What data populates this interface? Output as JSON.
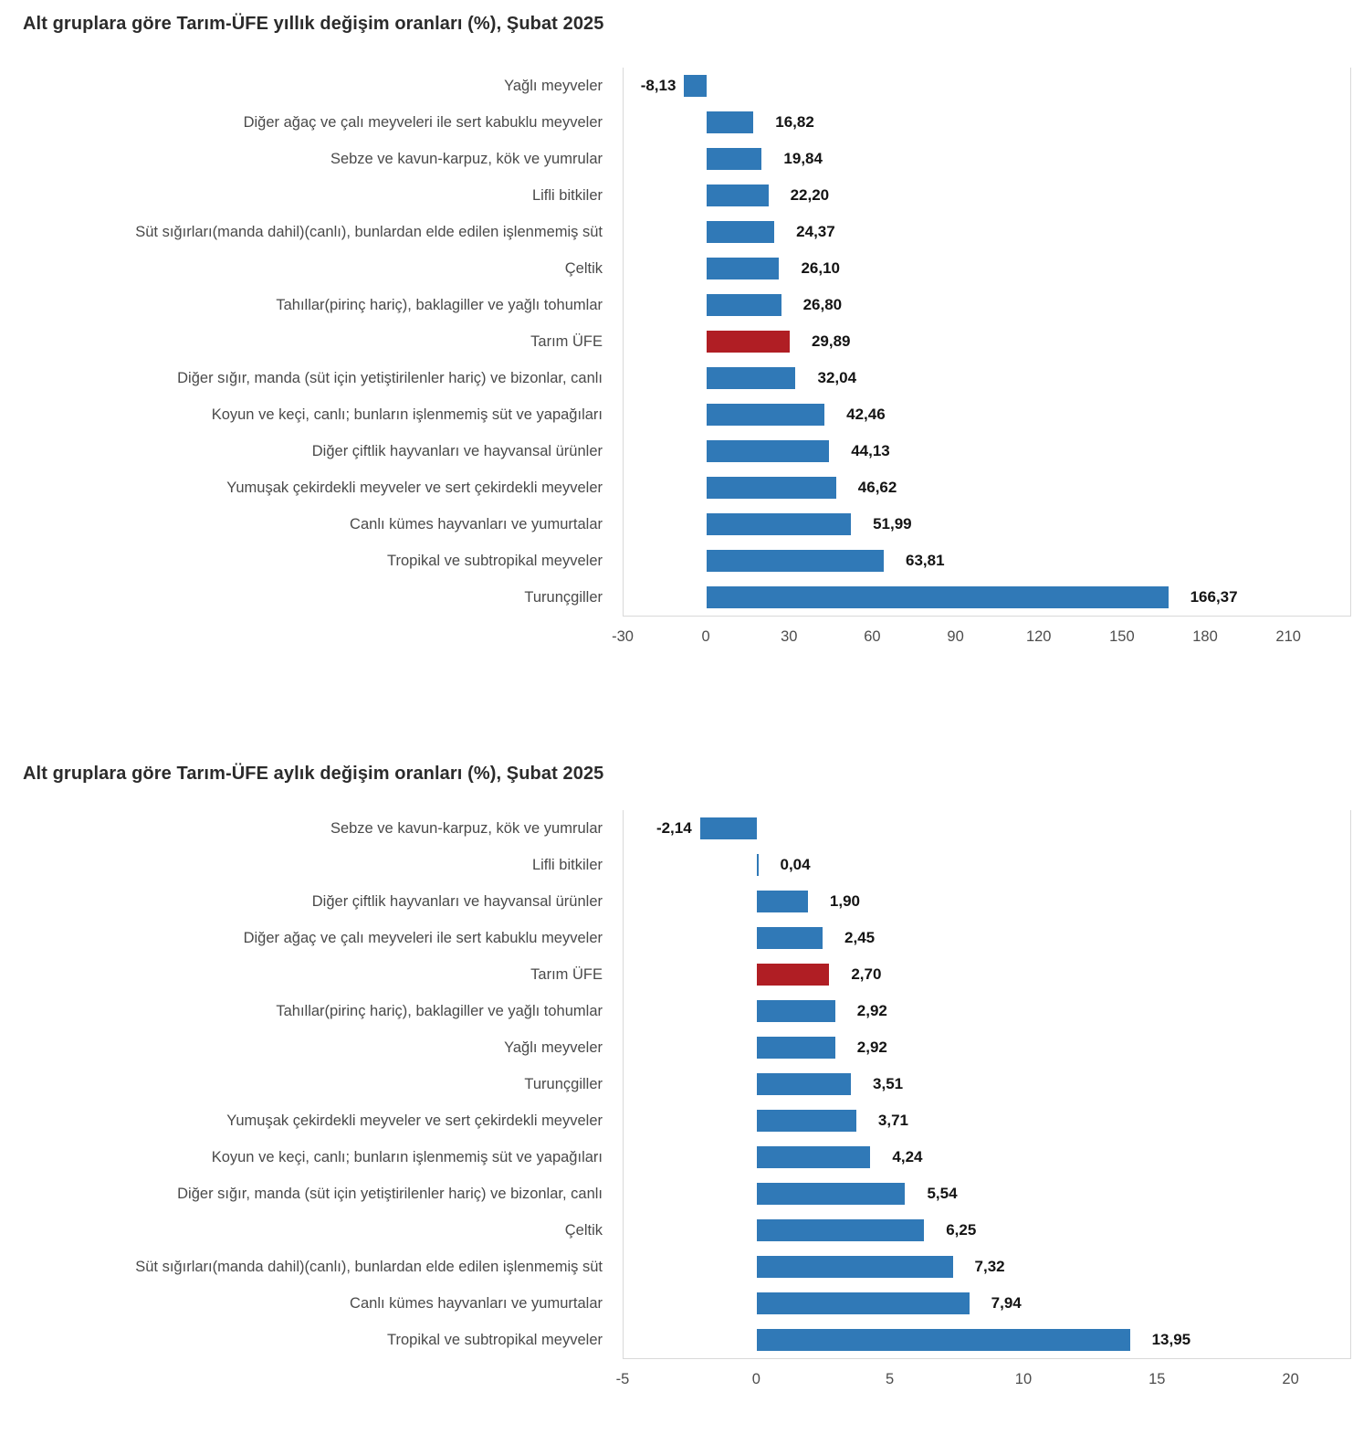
{
  "accent_colors": {
    "bar_blue": "#3079B7",
    "highlight_red": "#B01E24",
    "axis_line": "#d9d9d9"
  },
  "chart_data": [
    {
      "type": "bar",
      "orientation": "horizontal",
      "title": "Alt gruplara göre Tarım-ÜFE yıllık değişim oranları (%), Şubat 2025",
      "xlabel": "",
      "ylabel": "",
      "grid": false,
      "legend": null,
      "categories": [
        "Yağlı meyveler",
        "Diğer ağaç ve çalı meyveleri ile sert kabuklu meyveler",
        "Sebze ve kavun-karpuz, kök ve yumrular",
        "Lifli bitkiler",
        "Süt sığırları(manda dahil)(canlı), bunlardan elde edilen işlenmemiş süt",
        "Çeltik",
        "Tahıllar(pirinç hariç), baklagiller ve yağlı tohumlar",
        "Tarım ÜFE",
        "Diğer sığır, manda (süt için yetiştirilenler hariç) ve bizonlar, canlı",
        "Koyun ve keçi, canlı; bunların işlenmemiş süt ve yapağıları",
        "Diğer çiftlik hayvanları ve hayvansal ürünler",
        "Yumuşak çekirdekli meyveler ve sert çekirdekli meyveler",
        "Canlı kümes hayvanları ve yumurtalar",
        "Tropikal ve subtropikal meyveler",
        "Turunçgiller"
      ],
      "values": [
        -8.13,
        16.82,
        19.84,
        22.2,
        24.37,
        26.1,
        26.8,
        29.89,
        32.04,
        42.46,
        44.13,
        46.62,
        51.99,
        63.81,
        166.37
      ],
      "value_labels": [
        "-8,13",
        "16,82",
        "19,84",
        "22,20",
        "24,37",
        "26,10",
        "26,80",
        "29,89",
        "32,04",
        "42,46",
        "44,13",
        "46,62",
        "51,99",
        "63,81",
        "166,37"
      ],
      "highlight_index": 7,
      "axis": {
        "min": -30,
        "max": 232,
        "ticks": [
          -30,
          0,
          30,
          60,
          90,
          120,
          150,
          180,
          210
        ],
        "tick_labels": [
          "-30",
          "0",
          "30",
          "60",
          "90",
          "120",
          "150",
          "180",
          "210"
        ]
      }
    },
    {
      "type": "bar",
      "orientation": "horizontal",
      "title": "Alt gruplara göre Tarım-ÜFE aylık değişim oranları (%), Şubat 2025",
      "xlabel": "",
      "ylabel": "",
      "grid": false,
      "legend": null,
      "categories": [
        "Sebze ve kavun-karpuz, kök ve yumrular",
        "Lifli bitkiler",
        "Diğer çiftlik hayvanları ve hayvansal ürünler",
        "Diğer ağaç ve çalı meyveleri ile sert kabuklu meyveler",
        "Tarım ÜFE",
        "Tahıllar(pirinç hariç), baklagiller ve yağlı tohumlar",
        "Yağlı meyveler",
        "Turunçgiller",
        "Yumuşak çekirdekli meyveler ve sert çekirdekli meyveler",
        "Koyun ve keçi, canlı; bunların işlenmemiş süt ve yapağıları",
        "Diğer sığır, manda (süt için yetiştirilenler hariç) ve bizonlar, canlı",
        "Çeltik",
        "Süt sığırları(manda dahil)(canlı), bunlardan elde edilen işlenmemiş süt",
        "Canlı kümes hayvanları ve yumurtalar",
        "Tropikal ve subtropikal meyveler"
      ],
      "values": [
        -2.14,
        0.04,
        1.9,
        2.45,
        2.7,
        2.92,
        2.92,
        3.51,
        3.71,
        4.24,
        5.54,
        6.25,
        7.32,
        7.94,
        13.95
      ],
      "value_labels": [
        "-2,14",
        "0,04",
        "1,90",
        "2,45",
        "2,70",
        "2,92",
        "2,92",
        "3,51",
        "3,71",
        "4,24",
        "5,54",
        "6,25",
        "7,32",
        "7,94",
        "13,95"
      ],
      "highlight_index": 4,
      "axis": {
        "min": -5,
        "max": 22.2,
        "ticks": [
          -5,
          0,
          5,
          10,
          15,
          20
        ],
        "tick_labels": [
          "-5",
          "0",
          "5",
          "10",
          "15",
          "20"
        ]
      }
    }
  ]
}
